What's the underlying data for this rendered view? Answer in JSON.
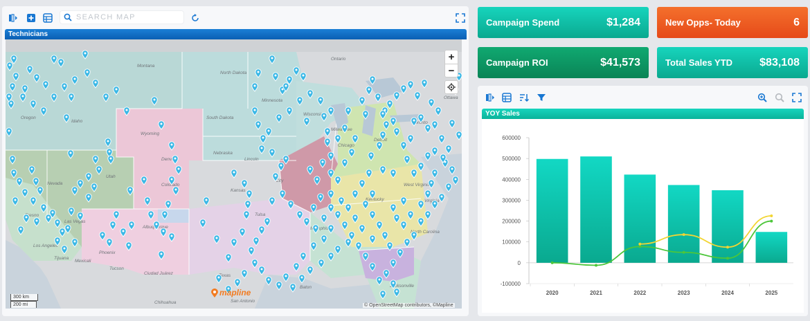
{
  "map": {
    "search_placeholder": "SEARCH MAP",
    "layer_title": "Technicians",
    "zoom_in": "+",
    "zoom_out": "−",
    "scale_km": "300 km",
    "scale_mi": "200 mi",
    "logo_text": "mapline",
    "attribution": "© OpenStreetMap contributors, ©Mapline",
    "labels": [
      {
        "t": "Oregon"
      },
      {
        "t": "Idaho"
      },
      {
        "t": "Nevada"
      },
      {
        "t": "Utah"
      },
      {
        "t": "Wyoming"
      },
      {
        "t": "Denver"
      },
      {
        "t": "Colorado"
      },
      {
        "t": "Montana"
      },
      {
        "t": "North Dakota"
      },
      {
        "t": "South Dakota"
      },
      {
        "t": "Nebraska"
      },
      {
        "t": "Lincoln"
      },
      {
        "t": "Kansas"
      },
      {
        "t": "City"
      },
      {
        "t": "Tulsa"
      },
      {
        "t": "Albuquerque"
      },
      {
        "t": "Phoenix"
      },
      {
        "t": "Tucson"
      },
      {
        "t": "Las Vegas"
      },
      {
        "t": "Fresno"
      },
      {
        "t": "Los Angeles"
      },
      {
        "t": "Tijuana"
      },
      {
        "t": "Mexicali"
      },
      {
        "t": "Ciudad Juárez"
      },
      {
        "t": "Chihuahua"
      },
      {
        "t": "Texas"
      },
      {
        "t": "San Antonio"
      },
      {
        "t": "Memphis"
      },
      {
        "t": "Baton"
      },
      {
        "t": "Jacksonville"
      },
      {
        "t": "Kentucky"
      },
      {
        "t": "West Virginia"
      },
      {
        "t": "Virginia"
      },
      {
        "t": "North Carolina"
      },
      {
        "t": "Toronto"
      },
      {
        "t": "Ottawa"
      },
      {
        "t": "Detroit"
      },
      {
        "t": "Milwaukee"
      },
      {
        "t": "Chicago"
      },
      {
        "t": "Minnesota"
      },
      {
        "t": "Wisconsin"
      },
      {
        "t": "Ontario"
      }
    ]
  },
  "kpis": [
    {
      "label": "Campaign Spend",
      "value": "$1,284"
    },
    {
      "label": "New Opps- Today",
      "value": "6"
    },
    {
      "label": "Campaign ROI",
      "value": "$41,573"
    },
    {
      "label": "Total Sales YTD",
      "value": "$83,108"
    }
  ],
  "chart": {
    "title_bar": "YOY Sales"
  },
  "colors": {
    "pin": "#3bb8e6",
    "bar_top": "#12d8c4",
    "bar_bottom": "#0aa98f",
    "line_green": "#4cc63a",
    "line_yellow": "#f2d533",
    "teal": "#13c9b0",
    "orange": "#ee5a22",
    "green": "#0f9a66",
    "header_blue": "#0c6cc4"
  },
  "chart_data": {
    "type": "bar",
    "categories": [
      "2020",
      "2021",
      "2022",
      "2023",
      "2024",
      "2025"
    ],
    "ylim": [
      -100000,
      600000
    ],
    "yticks": [
      "600000",
      "500000",
      "400000",
      "300000",
      "200000",
      "100000",
      "0",
      "-100000"
    ],
    "series": [
      {
        "type": "bar",
        "values": [
          498000,
          510000,
          423000,
          373000,
          348000,
          148000
        ]
      },
      {
        "type": "line",
        "values": [
          0,
          -12000,
          78000,
          50000,
          22000,
          200000
        ]
      },
      {
        "type": "line",
        "values": [
          null,
          null,
          90000,
          135000,
          75000,
          225000
        ]
      }
    ],
    "title": "",
    "xlabel": "",
    "ylabel": ""
  }
}
